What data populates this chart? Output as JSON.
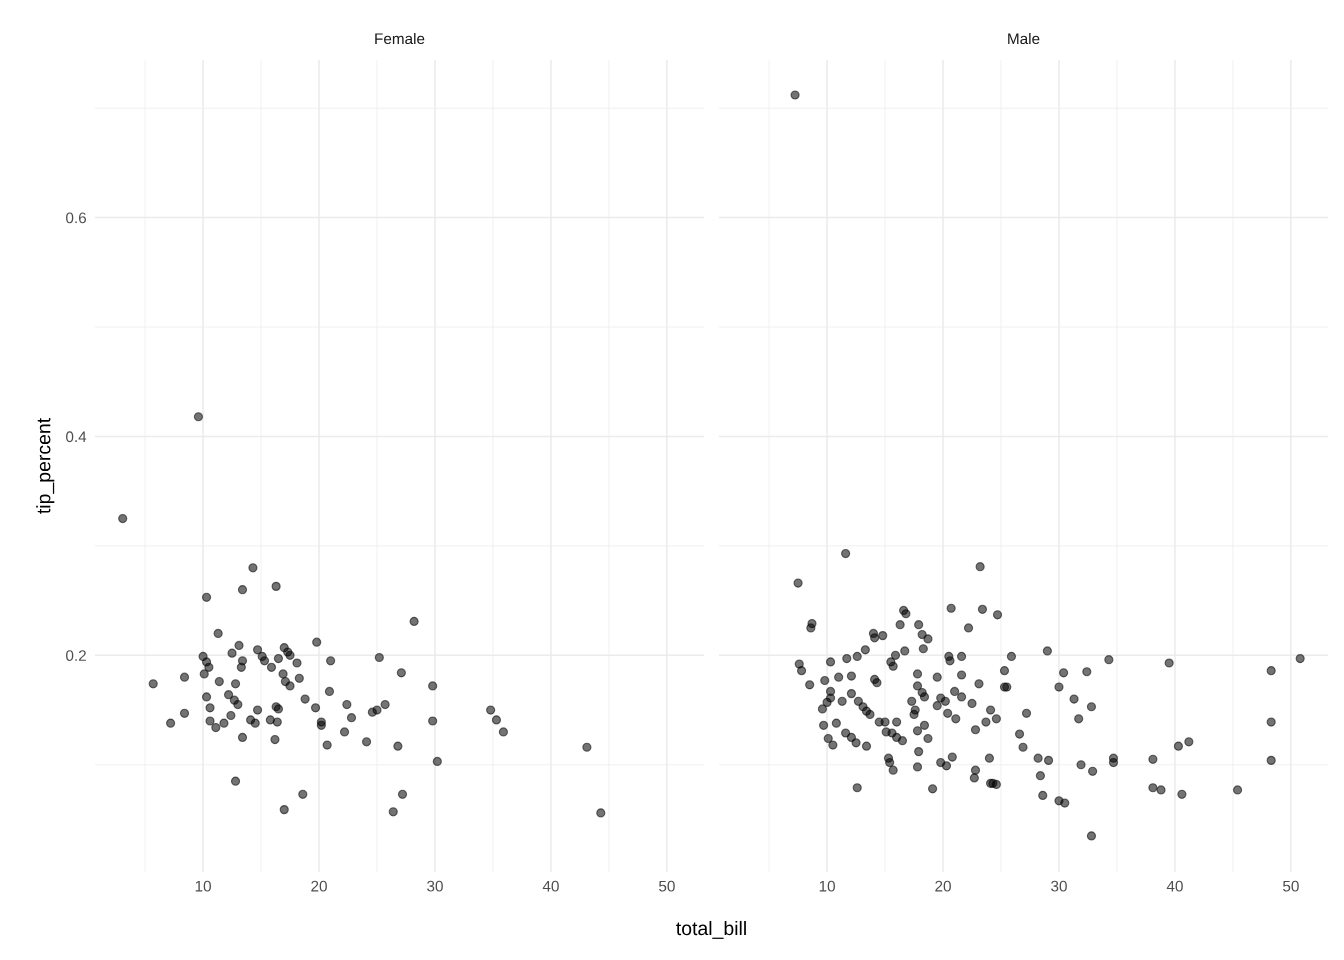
{
  "chart_data": [
    {
      "type": "scatter",
      "title": "Female",
      "xlabel": "total_bill",
      "ylabel": "tip_percent",
      "grid": true,
      "marker": "circle",
      "xlim": [
        0.68,
        53.2
      ],
      "ylim": [
        0.002,
        0.744
      ],
      "xticks": [
        {
          "value": 5,
          "label": null
        },
        10,
        {
          "value": 15,
          "label": null
        },
        20,
        {
          "value": 25,
          "label": null
        },
        30,
        {
          "value": 35,
          "label": null
        },
        40,
        {
          "value": 45,
          "label": null
        },
        50
      ],
      "yticks": [
        {
          "value": 0.1,
          "label": null
        },
        0.2,
        {
          "value": 0.3,
          "label": null
        },
        0.4,
        {
          "value": 0.5,
          "label": null
        },
        0.6,
        {
          "value": 0.7,
          "label": null
        }
      ],
      "series": [
        {
          "color": "#000000",
          "x": [
            3.07,
            9.6,
            14.3,
            13.4,
            16.3,
            10.3,
            11.3,
            28.2,
            13.1,
            19.8,
            12.5,
            10.0,
            10.3,
            10.5,
            13.4,
            13.3,
            14.7,
            15.1,
            15.3,
            16.5,
            15.9,
            17.0,
            17.3,
            17.5,
            18.1,
            21.0,
            25.2,
            27.1,
            29.8,
            10.1,
            8.4,
            5.7,
            11.4,
            12.8,
            16.9,
            17.1,
            17.5,
            18.3,
            20.9,
            10.3,
            12.2,
            12.7,
            13.0,
            16.3,
            16.5,
            18.8,
            19.7,
            22.4,
            25.7,
            25.0,
            24.6,
            22.8,
            20.2,
            20.2,
            10.6,
            8.4,
            7.2,
            10.6,
            11.1,
            11.8,
            12.4,
            14.7,
            14.1,
            14.5,
            15.8,
            16.4,
            29.8,
            13.4,
            16.2,
            22.2,
            20.7,
            24.1,
            26.8,
            30.2,
            12.8,
            18.6,
            17.0,
            27.2,
            26.4,
            34.8,
            35.3,
            35.9,
            43.1,
            44.3
          ],
          "values": [
            0.325,
            0.418,
            0.28,
            0.26,
            0.263,
            0.253,
            0.22,
            0.231,
            0.209,
            0.212,
            0.202,
            0.199,
            0.194,
            0.189,
            0.195,
            0.189,
            0.205,
            0.199,
            0.195,
            0.197,
            0.189,
            0.207,
            0.203,
            0.2,
            0.193,
            0.195,
            0.198,
            0.184,
            0.172,
            0.183,
            0.18,
            0.174,
            0.176,
            0.174,
            0.183,
            0.176,
            0.172,
            0.179,
            0.167,
            0.162,
            0.164,
            0.159,
            0.155,
            0.153,
            0.151,
            0.16,
            0.152,
            0.155,
            0.155,
            0.15,
            0.148,
            0.143,
            0.139,
            0.136,
            0.152,
            0.147,
            0.138,
            0.14,
            0.134,
            0.138,
            0.145,
            0.15,
            0.141,
            0.138,
            0.141,
            0.139,
            0.14,
            0.125,
            0.123,
            0.13,
            0.118,
            0.121,
            0.117,
            0.103,
            0.085,
            0.073,
            0.059,
            0.073,
            0.057,
            0.15,
            0.141,
            0.13,
            0.116,
            0.056
          ]
        }
      ]
    },
    {
      "type": "scatter",
      "title": "Male",
      "grid": true,
      "marker": "circle",
      "tick_labels": "x",
      "xlim": [
        0.68,
        53.2
      ],
      "ylim": [
        0.002,
        0.744
      ],
      "xticks": [
        {
          "value": 5,
          "label": null
        },
        10,
        {
          "value": 15,
          "label": null
        },
        20,
        {
          "value": 25,
          "label": null
        },
        30,
        {
          "value": 35,
          "label": null
        },
        40,
        {
          "value": 45,
          "label": null
        },
        50
      ],
      "yticks": [
        {
          "value": 0.1,
          "label": null
        },
        0.2,
        {
          "value": 0.3,
          "label": null
        },
        0.4,
        {
          "value": 0.5,
          "label": null
        },
        0.6,
        {
          "value": 0.7,
          "label": null
        }
      ],
      "series": [
        {
          "color": "#000000",
          "x": [
            7.24,
            11.6,
            7.5,
            8.7,
            8.6,
            14.0,
            14.1,
            14.8,
            16.6,
            16.8,
            16.3,
            17.9,
            18.2,
            18.7,
            18.3,
            20.7,
            13.3,
            12.6,
            11.7,
            10.3,
            7.6,
            7.8,
            8.5,
            9.8,
            11.0,
            12.1,
            15.9,
            15.5,
            15.7,
            16.7,
            14.1,
            14.3,
            17.8,
            19.5,
            20.5,
            20.6,
            21.6,
            21.6,
            10.3,
            10.3,
            10.0,
            9.6,
            12.1,
            11.3,
            12.7,
            13.1,
            13.4,
            13.7,
            17.8,
            18.2,
            18.4,
            17.3,
            17.6,
            17.5,
            19.5,
            19.8,
            20.2,
            21.0,
            21.6,
            20.4,
            21.1,
            9.7,
            10.8,
            10.1,
            10.5,
            11.6,
            12.1,
            12.5,
            13.4,
            14.5,
            15.0,
            16.0,
            15.1,
            15.6,
            16.0,
            16.5,
            17.8,
            18.4,
            18.7,
            17.9,
            17.8,
            15.3,
            15.4,
            15.7,
            19.8,
            20.3,
            20.8,
            12.6,
            19.1,
            23.2,
            23.4,
            24.7,
            22.2,
            25.9,
            29.0,
            34.3,
            39.5,
            50.8,
            48.3,
            25.3,
            30.4,
            32.4,
            23.1,
            25.3,
            25.5,
            30.0,
            31.3,
            32.8,
            31.7,
            22.5,
            24.1,
            24.6,
            23.7,
            27.2,
            22.8,
            26.6,
            26.9,
            24.0,
            28.2,
            29.1,
            31.9,
            32.9,
            34.7,
            34.7,
            38.1,
            40.3,
            41.2,
            48.3,
            48.3,
            22.8,
            22.7,
            24.1,
            24.3,
            24.6,
            28.4,
            28.6,
            30.0,
            30.5,
            38.1,
            38.8,
            40.6,
            45.4,
            32.8
          ],
          "values": [
            0.712,
            0.293,
            0.266,
            0.229,
            0.225,
            0.22,
            0.216,
            0.218,
            0.241,
            0.238,
            0.228,
            0.228,
            0.219,
            0.215,
            0.206,
            0.243,
            0.205,
            0.199,
            0.197,
            0.194,
            0.192,
            0.186,
            0.173,
            0.177,
            0.18,
            0.181,
            0.2,
            0.194,
            0.19,
            0.204,
            0.178,
            0.175,
            0.183,
            0.18,
            0.199,
            0.195,
            0.199,
            0.182,
            0.167,
            0.161,
            0.157,
            0.151,
            0.165,
            0.158,
            0.158,
            0.153,
            0.149,
            0.146,
            0.172,
            0.166,
            0.162,
            0.158,
            0.15,
            0.146,
            0.154,
            0.161,
            0.158,
            0.167,
            0.162,
            0.147,
            0.142,
            0.136,
            0.138,
            0.124,
            0.118,
            0.129,
            0.125,
            0.12,
            0.117,
            0.139,
            0.139,
            0.139,
            0.13,
            0.129,
            0.125,
            0.122,
            0.131,
            0.136,
            0.124,
            0.112,
            0.098,
            0.106,
            0.102,
            0.095,
            0.102,
            0.099,
            0.107,
            0.079,
            0.078,
            0.281,
            0.242,
            0.237,
            0.225,
            0.199,
            0.204,
            0.196,
            0.193,
            0.197,
            0.186,
            0.186,
            0.184,
            0.185,
            0.174,
            0.171,
            0.171,
            0.171,
            0.16,
            0.153,
            0.142,
            0.156,
            0.15,
            0.142,
            0.139,
            0.147,
            0.132,
            0.128,
            0.116,
            0.106,
            0.106,
            0.104,
            0.1,
            0.094,
            0.106,
            0.102,
            0.105,
            0.117,
            0.121,
            0.139,
            0.104,
            0.095,
            0.088,
            0.083,
            0.083,
            0.082,
            0.09,
            0.072,
            0.067,
            0.065,
            0.079,
            0.077,
            0.073,
            0.077,
            0.035
          ]
        }
      ]
    }
  ]
}
